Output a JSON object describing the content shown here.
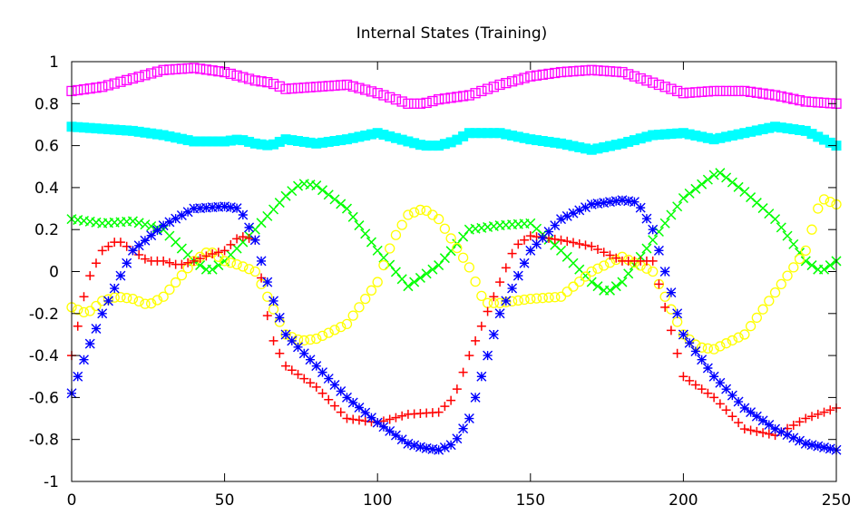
{
  "chart_data": {
    "type": "scatter",
    "title": "Internal States (Training)",
    "xlabel": "",
    "ylabel": "",
    "xlim": [
      0,
      250
    ],
    "ylim": [
      -1,
      1
    ],
    "x_ticks": [
      0,
      50,
      100,
      150,
      200,
      250
    ],
    "x_tick_labels": [
      "0",
      "50",
      "100",
      "150",
      "200",
      "250"
    ],
    "y_ticks": [
      1,
      0.8,
      0.6,
      0.4,
      0.2,
      0,
      -0.2,
      -0.4,
      -0.6,
      -0.8,
      -1
    ],
    "y_tick_labels": [
      "1",
      "0.8",
      "0.6",
      "0.4",
      "0.2",
      "0",
      "-0.2",
      "-0.4",
      "-0.6",
      "-0.8",
      "-1"
    ],
    "grid": false,
    "legend": "none",
    "sample_step": 2,
    "series": [
      {
        "color": "#ff00ff",
        "marker": "square",
        "x": [
          0,
          10,
          20,
          30,
          40,
          50,
          60,
          65,
          70,
          80,
          90,
          100,
          110,
          115,
          120,
          130,
          140,
          150,
          160,
          170,
          180,
          190,
          200,
          210,
          220,
          230,
          240,
          250
        ],
        "y": [
          0.86,
          0.88,
          0.92,
          0.96,
          0.97,
          0.95,
          0.91,
          0.9,
          0.87,
          0.88,
          0.89,
          0.85,
          0.8,
          0.8,
          0.82,
          0.84,
          0.89,
          0.93,
          0.95,
          0.96,
          0.95,
          0.9,
          0.85,
          0.86,
          0.86,
          0.84,
          0.81,
          0.8
        ]
      },
      {
        "color": "#00ffff",
        "marker": "filled-square",
        "x": [
          0,
          10,
          20,
          30,
          40,
          50,
          55,
          60,
          65,
          70,
          80,
          90,
          100,
          110,
          115,
          120,
          125,
          130,
          140,
          150,
          160,
          170,
          180,
          190,
          200,
          210,
          220,
          230,
          240,
          250
        ],
        "y": [
          0.69,
          0.68,
          0.67,
          0.65,
          0.62,
          0.62,
          0.63,
          0.61,
          0.6,
          0.63,
          0.61,
          0.63,
          0.66,
          0.62,
          0.6,
          0.6,
          0.62,
          0.66,
          0.66,
          0.63,
          0.61,
          0.58,
          0.61,
          0.65,
          0.66,
          0.63,
          0.66,
          0.69,
          0.67,
          0.6
        ]
      },
      {
        "color": "#00ff00",
        "marker": "x",
        "x": [
          0,
          10,
          20,
          30,
          40,
          45,
          50,
          60,
          70,
          75,
          80,
          90,
          100,
          110,
          120,
          130,
          140,
          150,
          160,
          170,
          175,
          180,
          190,
          200,
          210,
          212,
          220,
          230,
          240,
          245,
          250
        ],
        "y": [
          0.25,
          0.23,
          0.24,
          0.2,
          0.05,
          0.0,
          0.05,
          0.2,
          0.36,
          0.42,
          0.41,
          0.3,
          0.1,
          -0.07,
          0.03,
          0.2,
          0.22,
          0.23,
          0.1,
          -0.05,
          -0.1,
          -0.05,
          0.15,
          0.35,
          0.46,
          0.47,
          0.38,
          0.25,
          0.05,
          0.0,
          0.05
        ]
      },
      {
        "color": "#ffff00",
        "marker": "circle",
        "x": [
          0,
          5,
          10,
          15,
          20,
          25,
          30,
          40,
          45,
          50,
          55,
          60,
          70,
          75,
          80,
          90,
          100,
          105,
          110,
          115,
          120,
          130,
          135,
          140,
          150,
          160,
          170,
          180,
          190,
          200,
          205,
          210,
          220,
          230,
          240,
          245,
          250
        ],
        "y": [
          -0.17,
          -0.2,
          -0.14,
          -0.12,
          -0.13,
          -0.16,
          -0.12,
          0.05,
          0.1,
          0.05,
          0.03,
          0.0,
          -0.3,
          -0.33,
          -0.32,
          -0.25,
          -0.05,
          0.15,
          0.27,
          0.3,
          0.25,
          0.02,
          -0.15,
          -0.15,
          -0.13,
          -0.12,
          0.0,
          0.07,
          0.0,
          -0.3,
          -0.36,
          -0.37,
          -0.3,
          -0.1,
          0.1,
          0.35,
          0.32
        ]
      },
      {
        "color": "#ff0000",
        "marker": "plus",
        "x": [
          0,
          5,
          10,
          15,
          20,
          25,
          30,
          35,
          40,
          45,
          50,
          55,
          60,
          65,
          70,
          80,
          90,
          100,
          110,
          120,
          125,
          130,
          140,
          145,
          150,
          160,
          170,
          180,
          190,
          200,
          210,
          220,
          230,
          240,
          250
        ],
        "y": [
          -0.4,
          -0.05,
          0.1,
          0.15,
          0.1,
          0.05,
          0.05,
          0.03,
          0.05,
          0.08,
          0.1,
          0.17,
          0.15,
          -0.3,
          -0.45,
          -0.55,
          -0.7,
          -0.72,
          -0.68,
          -0.67,
          -0.6,
          -0.4,
          -0.05,
          0.12,
          0.17,
          0.15,
          0.12,
          0.05,
          0.05,
          -0.5,
          -0.6,
          -0.75,
          -0.78,
          -0.7,
          -0.65
        ]
      },
      {
        "color": "#0000ff",
        "marker": "star",
        "x": [
          0,
          5,
          10,
          20,
          30,
          40,
          50,
          55,
          60,
          65,
          70,
          80,
          90,
          100,
          110,
          115,
          120,
          125,
          130,
          140,
          150,
          160,
          170,
          180,
          185,
          190,
          200,
          210,
          220,
          230,
          240,
          250
        ],
        "y": [
          -0.58,
          -0.38,
          -0.2,
          0.1,
          0.22,
          0.3,
          0.31,
          0.3,
          0.15,
          -0.1,
          -0.3,
          -0.45,
          -0.6,
          -0.72,
          -0.82,
          -0.84,
          -0.85,
          -0.82,
          -0.7,
          -0.2,
          0.1,
          0.25,
          0.32,
          0.34,
          0.33,
          0.2,
          -0.3,
          -0.5,
          -0.65,
          -0.75,
          -0.82,
          -0.85
        ]
      }
    ]
  }
}
